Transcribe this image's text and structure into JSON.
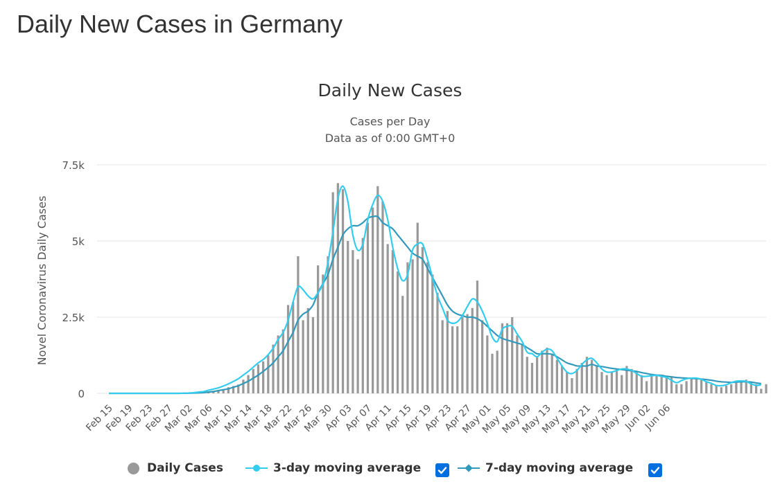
{
  "page": {
    "title": "Daily New Cases in Germany"
  },
  "legend": {
    "daily": "Daily Cases",
    "ma3": "3-day moving average",
    "ma7": "7-day moving average",
    "ma3_checked": true,
    "ma7_checked": true
  },
  "colors": {
    "bars": "#999999",
    "ma3": "#33ccee",
    "ma7": "#3399bb",
    "grid": "#e6e6e6",
    "checkbox": "#0070e0"
  },
  "chart_data": {
    "type": "bar",
    "title": "Daily New Cases",
    "subtitle": [
      "Cases per Day",
      "Data as of 0:00 GMT+0"
    ],
    "ylabel": "Novel Coronavirus Daily Cases",
    "xlabel": "",
    "ylim": [
      0,
      7500
    ],
    "yticks": [
      0,
      2500,
      5000,
      7500
    ],
    "ytick_labels": [
      "0",
      "2.5k",
      "5k",
      "7.5k"
    ],
    "grid": true,
    "legend_position": "bottom",
    "x_start": "2020-02-15",
    "xtick_labels": [
      "Feb 15",
      "Feb 19",
      "Feb 23",
      "Feb 27",
      "Mar 02",
      "Mar 06",
      "Mar 10",
      "Mar 14",
      "Mar 18",
      "Mar 22",
      "Mar 26",
      "Mar 30",
      "Apr 03",
      "Apr 07",
      "Apr 11",
      "Apr 15",
      "Apr 19",
      "Apr 23",
      "Apr 27",
      "May 01",
      "May 05",
      "May 09",
      "May 13",
      "May 17",
      "May 21",
      "May 25",
      "May 29",
      "Jun 02",
      "Jun 06"
    ],
    "series": [
      {
        "name": "Daily Cases",
        "kind": "bar",
        "values": [
          0,
          0,
          0,
          0,
          0,
          0,
          0,
          0,
          0,
          0,
          0,
          0,
          0,
          0,
          0,
          0,
          5,
          10,
          15,
          40,
          50,
          60,
          110,
          130,
          200,
          240,
          290,
          450,
          600,
          800,
          950,
          1050,
          1250,
          1600,
          1900,
          2100,
          2900,
          3000,
          4500,
          2400,
          2800,
          2500,
          4200,
          3900,
          4500,
          6600,
          6900,
          6700,
          5000,
          4700,
          4400,
          5100,
          5600,
          6100,
          6800,
          6300,
          4900,
          4700,
          4000,
          3200,
          4300,
          4400,
          5600,
          4800,
          4300,
          3900,
          3300,
          2400,
          2700,
          2200,
          2200,
          2500,
          2600,
          2800,
          3700,
          2400,
          1900,
          1300,
          1400,
          2300,
          2300,
          2500,
          1900,
          1600,
          1200,
          1000,
          1200,
          1400,
          1500,
          1300,
          1100,
          900,
          700,
          500,
          800,
          1000,
          1200,
          1100,
          900,
          700,
          600,
          700,
          800,
          600,
          900,
          800,
          700,
          600,
          400,
          600,
          600,
          600,
          500,
          550,
          300,
          300,
          400,
          500,
          500,
          450,
          400,
          300,
          250,
          200,
          250,
          300,
          350,
          400,
          450,
          350,
          300,
          150,
          300
        ]
      },
      {
        "name": "3-day moving average",
        "kind": "line",
        "values": [
          0,
          0,
          0,
          0,
          0,
          0,
          0,
          0,
          0,
          0,
          0,
          0,
          0,
          0,
          0,
          5,
          10,
          20,
          40,
          60,
          100,
          140,
          180,
          240,
          310,
          390,
          480,
          600,
          720,
          860,
          1000,
          1110,
          1270,
          1480,
          1770,
          2000,
          2400,
          3000,
          3500,
          3400,
          3200,
          3100,
          3300,
          3600,
          4300,
          5300,
          6400,
          6800,
          6300,
          5200,
          4700,
          4900,
          5700,
          6200,
          6500,
          6300,
          5700,
          4800,
          4100,
          3700,
          3900,
          4700,
          4900,
          4900,
          4400,
          3800,
          3200,
          2800,
          2400,
          2300,
          2350,
          2550,
          2850,
          3100,
          3000,
          2700,
          2300,
          1850,
          1700,
          2100,
          2200,
          2200,
          1950,
          1700,
          1350,
          1300,
          1200,
          1350,
          1450,
          1400,
          1150,
          900,
          700,
          650,
          750,
          950,
          1100,
          1150,
          1000,
          800,
          700,
          700,
          750,
          800,
          800,
          750,
          650,
          560,
          560,
          580,
          590,
          560,
          520,
          430,
          350,
          420,
          480,
          500,
          500,
          460,
          380,
          330,
          260,
          250,
          280,
          350,
          400,
          410,
          390,
          310,
          260,
          280
        ]
      },
      {
        "name": "7-day moving average",
        "kind": "line",
        "values": [
          0,
          0,
          0,
          0,
          0,
          0,
          0,
          0,
          0,
          0,
          0,
          0,
          0,
          0,
          0,
          2,
          5,
          10,
          15,
          25,
          40,
          60,
          90,
          120,
          150,
          200,
          250,
          320,
          400,
          500,
          600,
          720,
          850,
          1000,
          1200,
          1400,
          1700,
          2000,
          2400,
          2600,
          2700,
          2900,
          3300,
          3600,
          3900,
          4400,
          4800,
          5200,
          5400,
          5500,
          5500,
          5600,
          5750,
          5800,
          5800,
          5600,
          5500,
          5400,
          5200,
          5000,
          4800,
          4600,
          4500,
          4400,
          4100,
          3800,
          3500,
          3200,
          2900,
          2700,
          2600,
          2550,
          2500,
          2500,
          2450,
          2350,
          2200,
          2050,
          1900,
          1800,
          1750,
          1700,
          1650,
          1600,
          1500,
          1400,
          1300,
          1300,
          1300,
          1280,
          1200,
          1100,
          1000,
          950,
          900,
          900,
          900,
          950,
          900,
          880,
          850,
          820,
          800,
          780,
          760,
          740,
          720,
          680,
          650,
          620,
          600,
          590,
          560,
          540,
          520,
          510,
          500,
          490,
          480,
          470,
          450,
          430,
          400,
          380,
          370,
          360,
          370,
          380,
          380,
          370,
          340,
          320
        ]
      }
    ]
  }
}
